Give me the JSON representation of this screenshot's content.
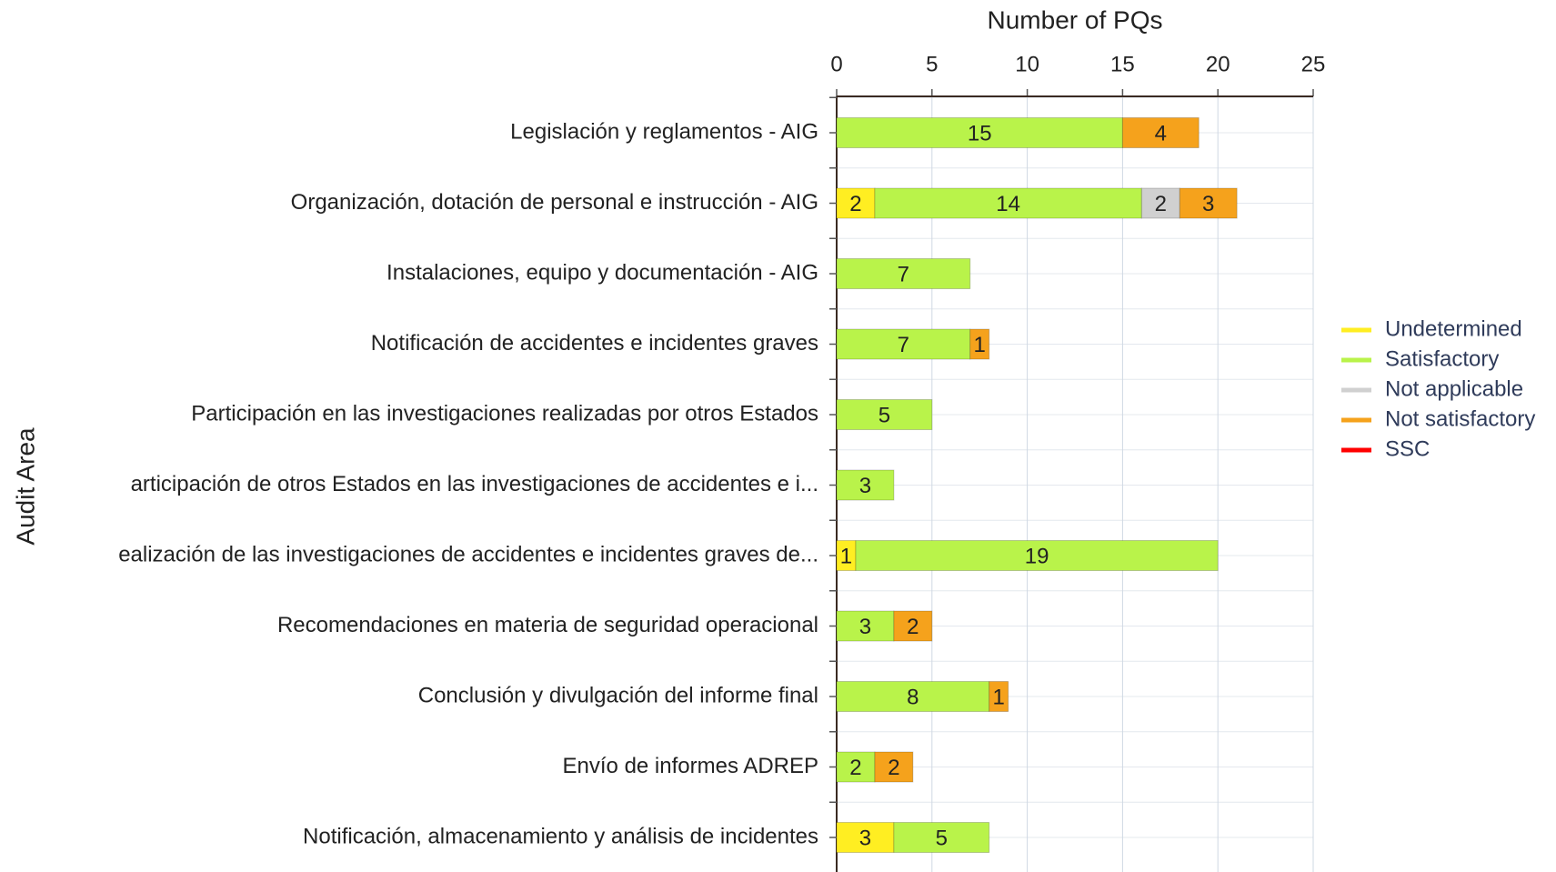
{
  "chart_data": {
    "type": "stacked_bar_horizontal",
    "xlabel": "Number of PQs",
    "ylabel": "Audit Area",
    "categories": [
      "Legislación y reglamentos - AIG",
      "Organización, dotación de personal e instrucción - AIG",
      "Instalaciones, equipo y documentación - AIG",
      "Notificación de accidentes e incidentes graves",
      "Participación en las investigaciones realizadas por otros Estados",
      "articipación de otros Estados en las investigaciones de accidentes e i...",
      "ealización de las investigaciones de accidentes e incidentes graves de...",
      "Recomendaciones en materia de seguridad operacional",
      "Conclusión y divulgación del informe final",
      "Envío de informes ADREP",
      "Notificación, almacenamiento y análisis de incidentes"
    ],
    "series": [
      {
        "name": "Undetermined",
        "color": "#ffee22",
        "values": [
          0,
          2,
          0,
          0,
          0,
          0,
          1,
          0,
          0,
          0,
          3
        ]
      },
      {
        "name": "Satisfactory",
        "color": "#b9f34a",
        "values": [
          15,
          14,
          7,
          7,
          5,
          3,
          19,
          3,
          8,
          2,
          5
        ]
      },
      {
        "name": "Not applicable",
        "color": "#d0d0d0",
        "values": [
          0,
          2,
          0,
          0,
          0,
          0,
          0,
          0,
          0,
          0,
          0
        ]
      },
      {
        "name": "Not satisfactory",
        "color": "#f5a21c",
        "values": [
          4,
          3,
          0,
          1,
          0,
          0,
          0,
          2,
          1,
          2,
          0
        ]
      },
      {
        "name": "SSC",
        "color": "#ff0000",
        "values": [
          0,
          0,
          0,
          0,
          0,
          0,
          0,
          0,
          0,
          0,
          0
        ]
      }
    ],
    "xlim": [
      0,
      25
    ],
    "xticks": [
      0,
      5,
      10,
      15,
      20,
      25
    ],
    "grid": true,
    "legend": "right"
  }
}
